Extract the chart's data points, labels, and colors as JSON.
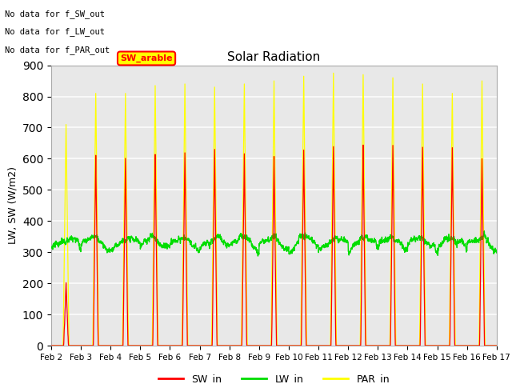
{
  "title": "Solar Radiation",
  "ylabel": "LW, SW (W/m2)",
  "text_annotations": [
    "No data for f_SW_out",
    "No data for f_LW_out",
    "No data for f_PAR_out"
  ],
  "legend_label": "SW_arable",
  "legend_entries": [
    "SW_in",
    "LW_in",
    "PAR_in"
  ],
  "line_colors": [
    "red",
    "#00dd00",
    "yellow"
  ],
  "ylim": [
    0,
    900
  ],
  "yticks": [
    0,
    100,
    200,
    300,
    400,
    500,
    600,
    700,
    800,
    900
  ],
  "background_color": "#e8e8e8",
  "grid_color": "#f8f8f8",
  "figsize": [
    6.4,
    4.8
  ],
  "dpi": 100,
  "sw_peak_values": [
    200,
    610,
    600,
    620,
    620,
    625,
    615,
    610,
    625,
    640,
    645,
    640,
    635,
    635,
    600
  ],
  "par_peak_values": [
    710,
    810,
    810,
    835,
    840,
    830,
    840,
    850,
    865,
    875,
    870,
    860,
    840,
    810,
    850
  ],
  "lw_baseline": 310,
  "lw_amplitude": 35,
  "n_days": 15,
  "points_per_day": 144
}
